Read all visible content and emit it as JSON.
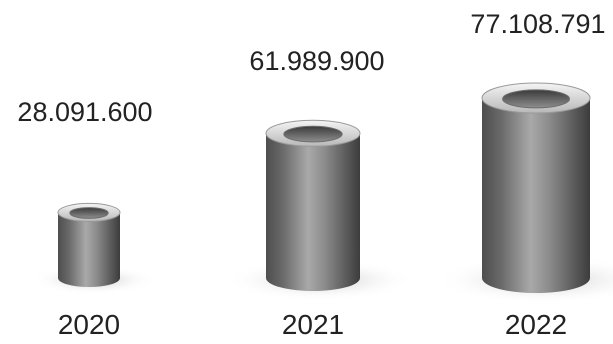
{
  "chart_data": {
    "type": "bar",
    "style": "3d-cylinder",
    "categories": [
      "2020",
      "2021",
      "2022"
    ],
    "values": [
      28091600,
      61989900,
      77108791
    ],
    "value_labels": [
      "28.091.600",
      "61.989.900",
      "77.108.791"
    ],
    "title": "",
    "xlabel": "",
    "ylabel": "",
    "legend": "none",
    "grid": false,
    "colors": {
      "cylinder": "#7a7a7a",
      "text": "#222222"
    }
  }
}
